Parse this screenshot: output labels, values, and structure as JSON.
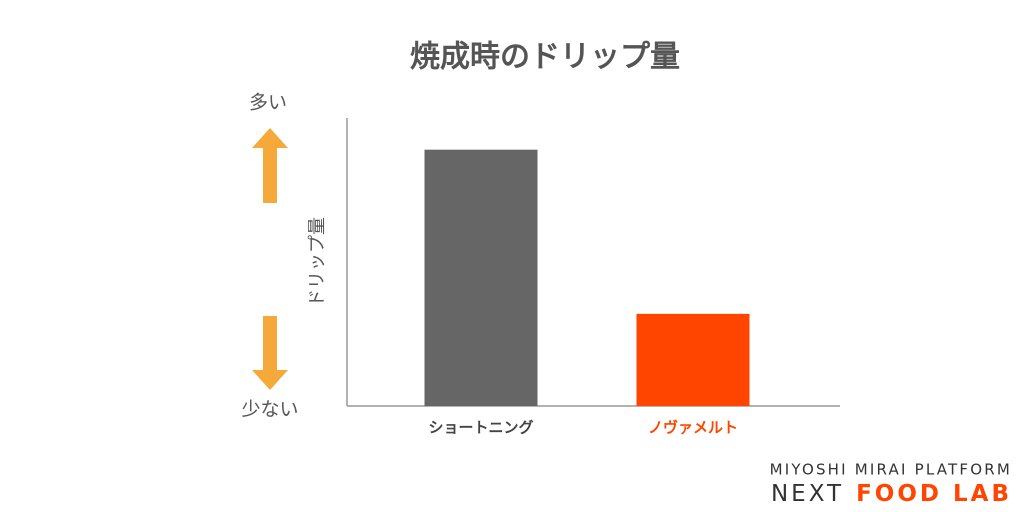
{
  "chart_data": {
    "type": "bar",
    "title": "焼成時のドリップ量",
    "y_label": "ドリップ量",
    "categories": [
      "ショートニング",
      "ノヴァメルト"
    ],
    "values": [
      89,
      32
    ],
    "colors": [
      "#666666",
      "#ff4500"
    ],
    "category_label_colors": [
      "#444444",
      "#ff4500"
    ],
    "ylim": [
      0,
      100
    ],
    "annotations": {
      "high": "多い",
      "low": "少ない"
    }
  },
  "logo": {
    "line1": "MIYOSHI MIRAI PLATFORM",
    "line2_a": "NEXT",
    "line2_b": "FOOD LAB"
  }
}
